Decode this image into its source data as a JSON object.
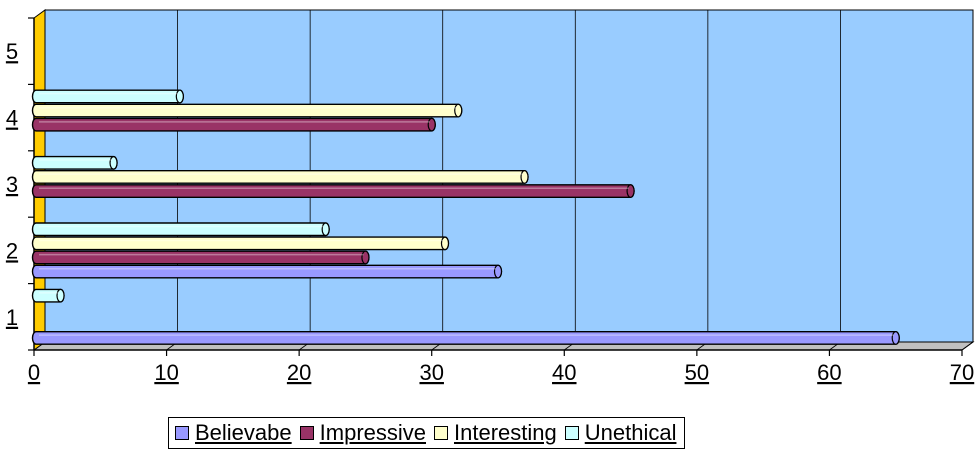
{
  "chart_data": {
    "type": "bar",
    "orientation": "horizontal",
    "categories": [
      "1",
      "2",
      "3",
      "4",
      "5"
    ],
    "xlim": [
      0,
      70
    ],
    "xticks": [
      "0",
      "10",
      "20",
      "30",
      "40",
      "50",
      "60",
      "70"
    ],
    "grid": true,
    "legend_position": "bottom",
    "series": [
      {
        "name": "Believabe",
        "color": "#9999ff",
        "values": [
          65,
          35,
          null,
          null,
          null
        ]
      },
      {
        "name": "Impressive",
        "color": "#993366",
        "values": [
          null,
          25,
          45,
          30,
          null
        ]
      },
      {
        "name": "Interesting",
        "color": "#ffffcc",
        "values": [
          null,
          31,
          37,
          32,
          null
        ]
      },
      {
        "name": "Unethical",
        "color": "#ccffff",
        "values": [
          2,
          22,
          6,
          11,
          null
        ]
      }
    ],
    "plot_background": "#99ccff",
    "wall_color": "#ffcc00"
  }
}
